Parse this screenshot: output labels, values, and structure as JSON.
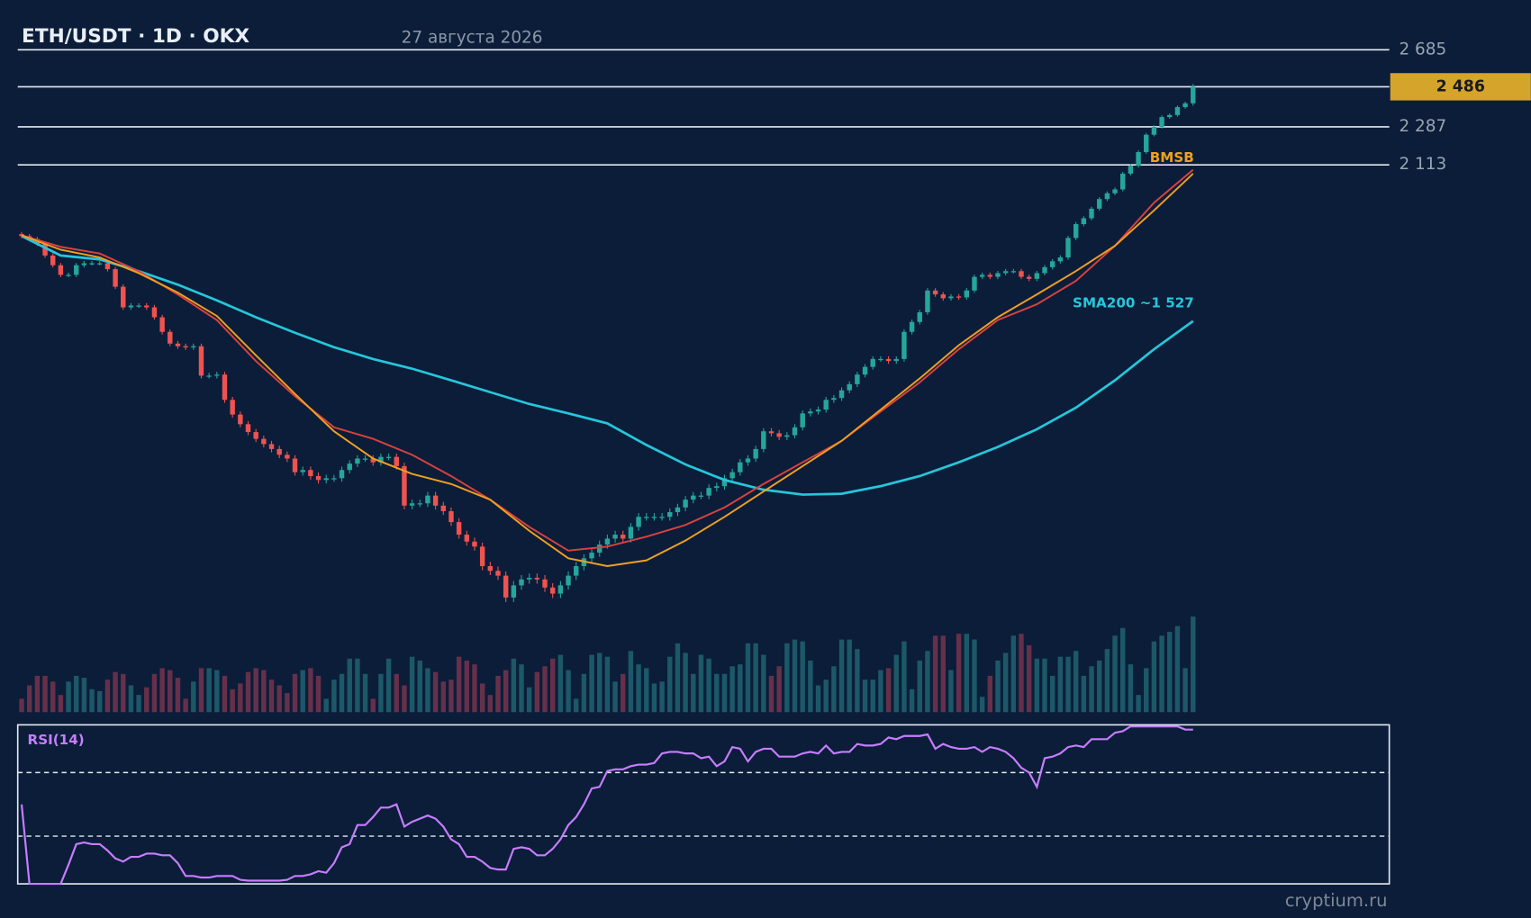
{
  "chart_data": {
    "type": "candlestick",
    "title": "ETH/USDT · 1D · OKX",
    "subtitle": "27 августа 2026",
    "log_scale": true,
    "ylim": [
      846,
      2802
    ],
    "yticks": [
      {
        "value": 2685,
        "label": "2 685"
      },
      {
        "value": 2287,
        "label": "2 287"
      },
      {
        "value": 2113,
        "label": "2 113"
      }
    ],
    "last_price": {
      "value": 2486,
      "label": "2 486"
    },
    "up_color": "#26a69a",
    "down_color": "#ef5350",
    "volume_up_color": "#1c5868",
    "volume_down_color": "#66304a",
    "ohlc": [
      [
        1830,
        1838,
        1814,
        1822
      ],
      [
        1822,
        1830,
        1803,
        1811
      ],
      [
        1811,
        1819,
        1785,
        1793
      ],
      [
        1793,
        1801,
        1742,
        1750
      ],
      [
        1750,
        1758,
        1707,
        1715
      ],
      [
        1715,
        1723,
        1673,
        1681
      ],
      [
        1681,
        1689,
        1673,
        1681
      ],
      [
        1681,
        1723,
        1673,
        1715
      ],
      [
        1715,
        1730,
        1707,
        1722
      ],
      [
        1722,
        1730,
        1714,
        1722
      ],
      [
        1722,
        1730,
        1714,
        1722
      ],
      [
        1722,
        1730,
        1693,
        1701
      ],
      [
        1701,
        1709,
        1632,
        1640
      ],
      [
        1640,
        1648,
        1563,
        1571
      ],
      [
        1571,
        1585,
        1563,
        1577
      ],
      [
        1577,
        1585,
        1569,
        1577
      ],
      [
        1577,
        1585,
        1563,
        1571
      ],
      [
        1571,
        1579,
        1531,
        1539
      ],
      [
        1539,
        1547,
        1485,
        1493
      ],
      [
        1493,
        1501,
        1449,
        1457
      ],
      [
        1457,
        1465,
        1441,
        1449
      ],
      [
        1449,
        1457,
        1438,
        1446
      ],
      [
        1446,
        1457,
        1438,
        1449
      ],
      [
        1449,
        1457,
        1355,
        1363
      ],
      [
        1363,
        1371,
        1355,
        1363
      ],
      [
        1363,
        1374,
        1355,
        1366
      ],
      [
        1366,
        1374,
        1288,
        1296
      ],
      [
        1296,
        1304,
        1249,
        1257
      ],
      [
        1257,
        1265,
        1224,
        1232
      ],
      [
        1232,
        1240,
        1204,
        1212
      ],
      [
        1212,
        1220,
        1187,
        1195
      ],
      [
        1195,
        1203,
        1174,
        1182
      ],
      [
        1182,
        1190,
        1162,
        1170
      ],
      [
        1170,
        1178,
        1148,
        1156
      ],
      [
        1156,
        1164,
        1139,
        1147
      ],
      [
        1147,
        1155,
        1107,
        1115
      ],
      [
        1115,
        1128,
        1107,
        1120
      ],
      [
        1120,
        1128,
        1098,
        1106
      ],
      [
        1106,
        1114,
        1089,
        1097
      ],
      [
        1097,
        1109,
        1089,
        1101
      ],
      [
        1101,
        1109,
        1093,
        1101
      ],
      [
        1101,
        1128,
        1093,
        1120
      ],
      [
        1120,
        1143,
        1112,
        1135
      ],
      [
        1135,
        1155,
        1127,
        1147
      ],
      [
        1147,
        1155,
        1139,
        1147
      ],
      [
        1147,
        1155,
        1130,
        1138
      ],
      [
        1138,
        1159,
        1130,
        1151
      ],
      [
        1151,
        1159,
        1143,
        1151
      ],
      [
        1151,
        1159,
        1121,
        1129
      ],
      [
        1129,
        1137,
        1032,
        1040
      ],
      [
        1040,
        1053,
        1032,
        1045
      ],
      [
        1045,
        1053,
        1037,
        1045
      ],
      [
        1045,
        1070,
        1037,
        1062
      ],
      [
        1062,
        1070,
        1032,
        1040
      ],
      [
        1040,
        1048,
        1020,
        1028
      ],
      [
        1028,
        1036,
        997,
        1005
      ],
      [
        1005,
        1013,
        971,
        979
      ],
      [
        979,
        987,
        957,
        965
      ],
      [
        965,
        973,
        947,
        955
      ],
      [
        955,
        963,
        909,
        917
      ],
      [
        917,
        925,
        900,
        908
      ],
      [
        908,
        916,
        891,
        899
      ],
      [
        899,
        907,
        851,
        859
      ],
      [
        859,
        889,
        851,
        881
      ],
      [
        881,
        900,
        873,
        892
      ],
      [
        892,
        903,
        884,
        895
      ],
      [
        895,
        903,
        884,
        892
      ],
      [
        892,
        900,
        869,
        877
      ],
      [
        877,
        885,
        858,
        866
      ],
      [
        866,
        889,
        858,
        881
      ],
      [
        881,
        907,
        873,
        899
      ],
      [
        899,
        925,
        891,
        917
      ],
      [
        917,
        940,
        909,
        932
      ],
      [
        932,
        951,
        924,
        943
      ],
      [
        943,
        967,
        935,
        959
      ],
      [
        959,
        979,
        951,
        971
      ],
      [
        971,
        987,
        963,
        979
      ],
      [
        979,
        987,
        963,
        971
      ],
      [
        971,
        1003,
        963,
        995
      ],
      [
        995,
        1024,
        987,
        1016
      ],
      [
        1016,
        1024,
        1008,
        1016
      ],
      [
        1016,
        1024,
        1008,
        1016
      ],
      [
        1016,
        1024,
        1008,
        1016
      ],
      [
        1016,
        1034,
        1008,
        1026
      ],
      [
        1026,
        1044,
        1018,
        1036
      ],
      [
        1036,
        1061,
        1028,
        1053
      ],
      [
        1053,
        1070,
        1045,
        1062
      ],
      [
        1062,
        1070,
        1054,
        1062
      ],
      [
        1062,
        1087,
        1054,
        1079
      ],
      [
        1079,
        1091,
        1071,
        1083
      ],
      [
        1083,
        1109,
        1075,
        1101
      ],
      [
        1101,
        1123,
        1093,
        1115
      ],
      [
        1115,
        1146,
        1107,
        1138
      ],
      [
        1138,
        1155,
        1130,
        1147
      ],
      [
        1147,
        1178,
        1139,
        1170
      ],
      [
        1170,
        1222,
        1162,
        1214
      ],
      [
        1214,
        1222,
        1201,
        1209
      ],
      [
        1209,
        1217,
        1192,
        1200
      ],
      [
        1200,
        1212,
        1192,
        1204
      ],
      [
        1204,
        1232,
        1196,
        1224
      ],
      [
        1224,
        1268,
        1216,
        1260
      ],
      [
        1260,
        1273,
        1252,
        1265
      ],
      [
        1265,
        1278,
        1257,
        1270
      ],
      [
        1270,
        1304,
        1262,
        1296
      ],
      [
        1296,
        1309,
        1288,
        1301
      ],
      [
        1301,
        1330,
        1293,
        1322
      ],
      [
        1322,
        1347,
        1314,
        1339
      ],
      [
        1339,
        1374,
        1331,
        1366
      ],
      [
        1366,
        1396,
        1358,
        1388
      ],
      [
        1388,
        1419,
        1380,
        1411
      ],
      [
        1411,
        1419,
        1403,
        1411
      ],
      [
        1411,
        1419,
        1397,
        1405
      ],
      [
        1405,
        1419,
        1397,
        1411
      ],
      [
        1411,
        1501,
        1403,
        1493
      ],
      [
        1493,
        1532,
        1485,
        1524
      ],
      [
        1524,
        1563,
        1516,
        1555
      ],
      [
        1555,
        1635,
        1547,
        1627
      ],
      [
        1627,
        1635,
        1606,
        1614
      ],
      [
        1614,
        1622,
        1593,
        1601
      ],
      [
        1601,
        1615,
        1593,
        1607
      ],
      [
        1607,
        1615,
        1596,
        1604
      ],
      [
        1604,
        1635,
        1596,
        1627
      ],
      [
        1627,
        1682,
        1619,
        1674
      ],
      [
        1674,
        1689,
        1666,
        1681
      ],
      [
        1681,
        1689,
        1666,
        1674
      ],
      [
        1674,
        1695,
        1666,
        1687
      ],
      [
        1687,
        1702,
        1679,
        1694
      ],
      [
        1694,
        1702,
        1686,
        1694
      ],
      [
        1694,
        1702,
        1666,
        1674
      ],
      [
        1674,
        1682,
        1659,
        1667
      ],
      [
        1667,
        1695,
        1659,
        1687
      ],
      [
        1687,
        1716,
        1679,
        1708
      ],
      [
        1708,
        1737,
        1700,
        1729
      ],
      [
        1729,
        1751,
        1721,
        1743
      ],
      [
        1743,
        1823,
        1735,
        1815
      ],
      [
        1815,
        1876,
        1807,
        1868
      ],
      [
        1868,
        1899,
        1860,
        1891
      ],
      [
        1891,
        1937,
        1883,
        1929
      ],
      [
        1929,
        1976,
        1921,
        1968
      ],
      [
        1968,
        2000,
        1960,
        1992
      ],
      [
        1992,
        2016,
        1984,
        2008
      ],
      [
        2008,
        2083,
        2000,
        2075
      ],
      [
        2075,
        2117,
        2067,
        2109
      ],
      [
        2109,
        2178,
        2101,
        2170
      ],
      [
        2170,
        2258,
        2162,
        2250
      ],
      [
        2250,
        2295,
        2242,
        2287
      ],
      [
        2287,
        2342,
        2279,
        2334
      ],
      [
        2334,
        2352,
        2326,
        2344
      ],
      [
        2344,
        2391,
        2336,
        2383
      ],
      [
        2383,
        2410,
        2375,
        2402
      ],
      [
        2402,
        2500,
        2390,
        2486
      ]
    ],
    "volume": [
      14,
      28,
      38,
      38,
      32,
      18,
      32,
      38,
      36,
      24,
      22,
      34,
      42,
      40,
      28,
      18,
      26,
      40,
      46,
      44,
      36,
      14,
      32,
      46,
      46,
      44,
      38,
      24,
      30,
      42,
      46,
      44,
      34,
      28,
      20,
      40,
      44,
      46,
      38,
      14,
      34,
      40,
      56,
      56,
      40,
      14,
      40,
      56,
      40,
      28,
      58,
      54,
      46,
      42,
      32,
      34,
      58,
      54,
      50,
      30,
      18,
      38,
      44,
      56,
      50,
      26,
      42,
      48,
      56,
      60,
      44,
      14,
      40,
      60,
      62,
      58,
      32,
      40,
      64,
      50,
      46,
      30,
      32,
      58,
      72,
      62,
      40,
      60,
      56,
      40,
      40,
      48,
      50,
      72,
      72,
      60,
      38,
      48,
      72,
      76,
      74,
      54,
      28,
      34,
      48,
      76,
      76,
      66,
      34,
      34,
      44,
      46,
      60,
      74,
      24,
      54,
      64,
      80,
      80,
      44,
      82,
      82,
      76,
      16,
      38,
      54,
      62,
      80,
      82,
      70,
      56,
      56,
      38,
      58,
      58,
      64,
      38,
      48,
      54,
      66,
      80,
      88,
      50,
      18,
      46,
      74,
      80,
      84,
      90,
      46,
      100
    ],
    "ma_x": [
      0,
      5,
      10,
      15,
      20,
      25,
      30,
      35,
      40,
      45,
      50,
      55,
      60,
      65,
      70,
      75,
      80,
      85,
      90,
      95,
      100,
      105,
      110,
      115,
      120,
      125,
      130,
      135,
      140,
      145,
      150
    ],
    "lines": [
      {
        "color": "#26c6da",
        "label": "SMA200 ~1 527",
        "values": [
          1822,
          1750,
          1736,
          1694,
          1647,
          1594,
          1539,
          1490,
          1446,
          1411,
          1383,
          1350,
          1317,
          1285,
          1260,
          1234,
          1180,
          1133,
          1097,
          1075,
          1064,
          1066,
          1083,
          1106,
          1138,
          1175,
          1219,
          1275,
          1350,
          1440,
          1527
        ]
      },
      {
        "color": "#d9413f",
        "values": [
          1825,
          1782,
          1757,
          1694,
          1614,
          1530,
          1405,
          1306,
          1224,
          1195,
          1156,
          1106,
          1053,
          995,
          947,
          955,
          975,
          999,
          1036,
          1088,
          1138,
          1190,
          1265,
          1344,
          1440,
          1530,
          1581,
          1660,
          1786,
          1953,
          2092
        ]
      },
      {
        "color": "#f0a020",
        "label": "BMSB",
        "values": [
          1825,
          1771,
          1743,
          1687,
          1620,
          1543,
          1422,
          1312,
          1214,
          1147,
          1111,
          1088,
          1053,
          987,
          932,
          917,
          928,
          967,
          1016,
          1071,
          1129,
          1190,
          1270,
          1355,
          1452,
          1539,
          1614,
          1694,
          1786,
          1922,
          2075
        ]
      }
    ],
    "rsi": {
      "title": "RSI(14)",
      "color": "#c77dff",
      "ylim": [
        0,
        100
      ],
      "levels": [
        30,
        70
      ],
      "values": [
        50,
        0,
        0,
        0,
        0,
        0,
        12,
        25,
        26,
        25,
        25,
        21,
        16,
        14,
        17,
        17,
        19,
        19,
        18,
        18,
        13,
        5,
        5,
        4,
        4,
        5,
        5,
        5,
        2.5,
        2,
        2,
        2,
        2,
        2,
        2.5,
        5,
        5,
        6,
        8,
        7,
        13,
        23,
        25,
        37,
        37,
        42,
        48,
        48,
        50,
        36,
        39,
        41,
        43,
        41,
        36,
        28,
        25,
        17,
        17,
        14,
        10,
        9,
        9,
        22,
        23,
        22,
        18,
        18,
        22,
        28,
        37,
        42,
        50,
        60,
        61,
        71,
        72,
        72,
        74,
        75,
        75,
        76,
        82,
        83,
        83,
        82,
        82,
        79,
        80,
        74,
        77,
        86,
        85,
        77,
        83,
        85,
        85,
        80,
        80,
        80,
        82,
        83,
        82,
        87,
        82,
        83,
        83,
        88,
        87,
        87,
        88,
        92,
        91,
        93,
        93,
        93,
        94,
        85,
        88,
        86,
        85,
        85,
        86,
        83,
        86,
        85,
        83,
        79,
        73,
        70,
        61,
        79,
        80,
        82,
        86,
        87,
        86,
        91,
        91,
        91,
        95,
        96,
        99,
        99,
        99,
        99,
        99,
        99,
        99,
        97,
        97
      ]
    },
    "watermark": "cryptium.ru"
  }
}
